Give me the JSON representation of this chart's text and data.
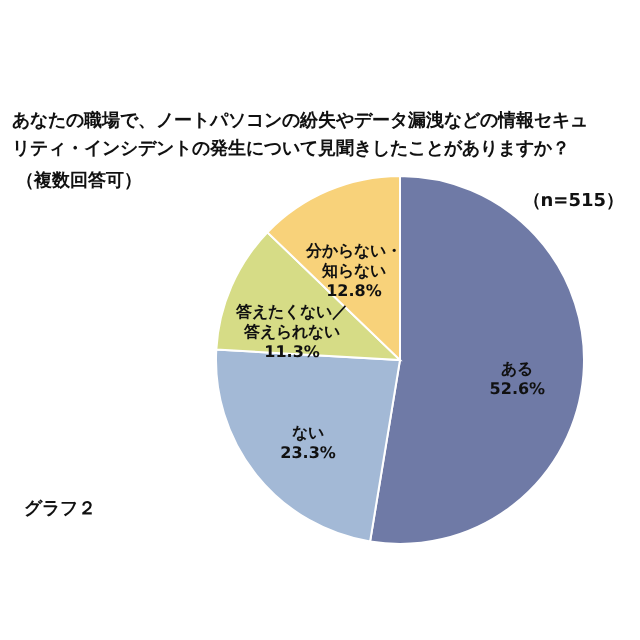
{
  "chart_data": {
    "type": "pie",
    "title": "あなたの職場で、ノートパソコンの紛失やデータ漏洩などの情報セキュリティ・インシデントの発生について見聞きしたことがありますか？",
    "subtitle": "（複数回答可）",
    "annotations": [
      "（n=515）",
      "グラフ２"
    ],
    "categories": [
      "ある",
      "ない",
      "答えたくない／答えられない",
      "分からない・知らない"
    ],
    "values": [
      52.6,
      23.3,
      11.3,
      12.8
    ],
    "value_labels": [
      "52.6%",
      "23.3%",
      "11.3%",
      "12.8%"
    ],
    "colors": [
      "#6f7aa6",
      "#a3b9d6",
      "#d6dc86",
      "#f8d27a"
    ]
  }
}
